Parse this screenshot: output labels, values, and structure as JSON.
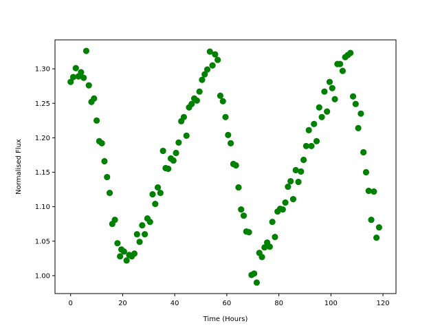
{
  "chart_data": {
    "type": "scatter",
    "xlabel": "Time (Hours)",
    "ylabel": "Normalised Flux",
    "xlim": [
      -6,
      125
    ],
    "ylim": [
      0.974,
      1.342
    ],
    "xticks": [
      0,
      20,
      40,
      60,
      80,
      100,
      120
    ],
    "yticks": [
      1.0,
      1.05,
      1.1,
      1.15,
      1.2,
      1.25,
      1.3
    ],
    "xtick_labels": [
      "0",
      "20",
      "40",
      "60",
      "80",
      "100",
      "120"
    ],
    "ytick_labels": [
      "1.00",
      "1.05",
      "1.10",
      "1.15",
      "1.20",
      "1.25",
      "1.30"
    ],
    "grid": false,
    "marker_color": "#008000",
    "points": [
      [
        0.0,
        1.281
      ],
      [
        1.0,
        1.288
      ],
      [
        2.0,
        1.301
      ],
      [
        3.0,
        1.289
      ],
      [
        4.0,
        1.295
      ],
      [
        5.0,
        1.287
      ],
      [
        6.0,
        1.326
      ],
      [
        7.0,
        1.276
      ],
      [
        8.0,
        1.252
      ],
      [
        9.0,
        1.257
      ],
      [
        10.0,
        1.225
      ],
      [
        11.0,
        1.195
      ],
      [
        12.0,
        1.192
      ],
      [
        13.0,
        1.166
      ],
      [
        14.0,
        1.143
      ],
      [
        15.0,
        1.12
      ],
      [
        16.0,
        1.075
      ],
      [
        17.0,
        1.081
      ],
      [
        18.0,
        1.047
      ],
      [
        19.0,
        1.028
      ],
      [
        19.5,
        1.038
      ],
      [
        20.5,
        1.035
      ],
      [
        21.5,
        1.022
      ],
      [
        22.5,
        1.03
      ],
      [
        23.5,
        1.028
      ],
      [
        24.5,
        1.032
      ],
      [
        25.5,
        1.06
      ],
      [
        26.5,
        1.049
      ],
      [
        27.5,
        1.073
      ],
      [
        28.5,
        1.06
      ],
      [
        29.5,
        1.083
      ],
      [
        30.5,
        1.078
      ],
      [
        31.5,
        1.118
      ],
      [
        32.5,
        1.104
      ],
      [
        33.5,
        1.128
      ],
      [
        34.5,
        1.12
      ],
      [
        35.5,
        1.181
      ],
      [
        36.5,
        1.156
      ],
      [
        37.5,
        1.155
      ],
      [
        38.5,
        1.17
      ],
      [
        39.5,
        1.167
      ],
      [
        40.5,
        1.178
      ],
      [
        41.5,
        1.193
      ],
      [
        42.5,
        1.224
      ],
      [
        43.5,
        1.23
      ],
      [
        44.5,
        1.203
      ],
      [
        45.5,
        1.244
      ],
      [
        46.5,
        1.249
      ],
      [
        47.5,
        1.257
      ],
      [
        48.5,
        1.254
      ],
      [
        49.5,
        1.267
      ],
      [
        50.5,
        1.284
      ],
      [
        51.5,
        1.292
      ],
      [
        52.5,
        1.299
      ],
      [
        53.5,
        1.325
      ],
      [
        54.5,
        1.305
      ],
      [
        55.5,
        1.321
      ],
      [
        56.5,
        1.313
      ],
      [
        57.5,
        1.261
      ],
      [
        58.5,
        1.253
      ],
      [
        59.5,
        1.23
      ],
      [
        60.5,
        1.204
      ],
      [
        61.5,
        1.192
      ],
      [
        62.5,
        1.162
      ],
      [
        63.5,
        1.16
      ],
      [
        64.5,
        1.128
      ],
      [
        65.5,
        1.096
      ],
      [
        66.5,
        1.087
      ],
      [
        67.5,
        1.064
      ],
      [
        68.5,
        1.063
      ],
      [
        69.5,
        1.001
      ],
      [
        70.5,
        1.003
      ],
      [
        71.5,
        0.99
      ],
      [
        72.5,
        1.033
      ],
      [
        73.5,
        1.027
      ],
      [
        74.5,
        1.041
      ],
      [
        75.5,
        1.048
      ],
      [
        76.5,
        1.042
      ],
      [
        77.5,
        1.078
      ],
      [
        78.5,
        1.056
      ],
      [
        79.5,
        1.093
      ],
      [
        80.5,
        1.097
      ],
      [
        81.5,
        1.096
      ],
      [
        82.5,
        1.106
      ],
      [
        83.5,
        1.129
      ],
      [
        84.5,
        1.137
      ],
      [
        85.5,
        1.111
      ],
      [
        86.5,
        1.153
      ],
      [
        87.5,
        1.136
      ],
      [
        88.5,
        1.151
      ],
      [
        89.5,
        1.168
      ],
      [
        90.5,
        1.188
      ],
      [
        91.5,
        1.211
      ],
      [
        92.5,
        1.188
      ],
      [
        93.5,
        1.22
      ],
      [
        94.5,
        1.195
      ],
      [
        95.5,
        1.244
      ],
      [
        96.5,
        1.23
      ],
      [
        97.5,
        1.267
      ],
      [
        98.5,
        1.238
      ],
      [
        99.5,
        1.281
      ],
      [
        100.5,
        1.272
      ],
      [
        101.5,
        1.256
      ],
      [
        102.5,
        1.307
      ],
      [
        103.5,
        1.307
      ],
      [
        104.5,
        1.297
      ],
      [
        105.5,
        1.317
      ],
      [
        106.5,
        1.32
      ],
      [
        107.5,
        1.323
      ],
      [
        108.5,
        1.26
      ],
      [
        109.5,
        1.249
      ],
      [
        110.5,
        1.214
      ],
      [
        111.5,
        1.235
      ],
      [
        112.5,
        1.179
      ],
      [
        113.5,
        1.15
      ],
      [
        114.5,
        1.123
      ],
      [
        115.5,
        1.081
      ],
      [
        116.5,
        1.122
      ],
      [
        117.5,
        1.055
      ],
      [
        118.5,
        1.07
      ]
    ]
  }
}
